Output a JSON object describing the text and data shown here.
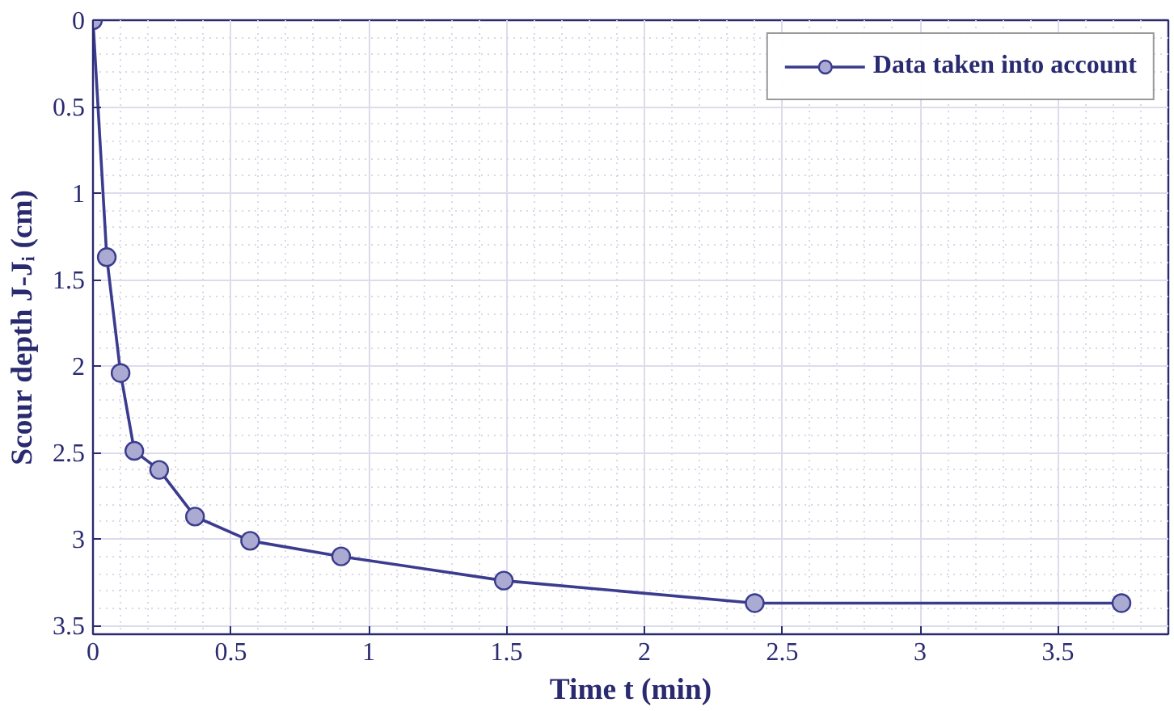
{
  "chart_data": {
    "type": "line",
    "xlabel": "Time t (min)",
    "ylabel": "Scour depth J-Jᵢ (cm)",
    "x": [
      0,
      0.05,
      0.1,
      0.15,
      0.24,
      0.37,
      0.57,
      0.9,
      1.49,
      2.4,
      3.73
    ],
    "series": [
      {
        "name": "Data taken into account",
        "color": "#3b3b8f",
        "values": [
          0,
          1.37,
          2.04,
          2.49,
          2.6,
          2.87,
          3.01,
          3.1,
          3.24,
          3.37,
          3.37
        ]
      }
    ],
    "xlim": [
      0,
      3.9
    ],
    "ylim": [
      3.55,
      0
    ],
    "xticks": [
      0,
      0.5,
      1,
      1.5,
      2,
      2.5,
      3,
      3.5
    ],
    "yticks": [
      0,
      0.5,
      1,
      1.5,
      2,
      2.5,
      3,
      3.5
    ],
    "grid": true,
    "legend": "top right",
    "marker": "circle",
    "line_style": "solid"
  }
}
